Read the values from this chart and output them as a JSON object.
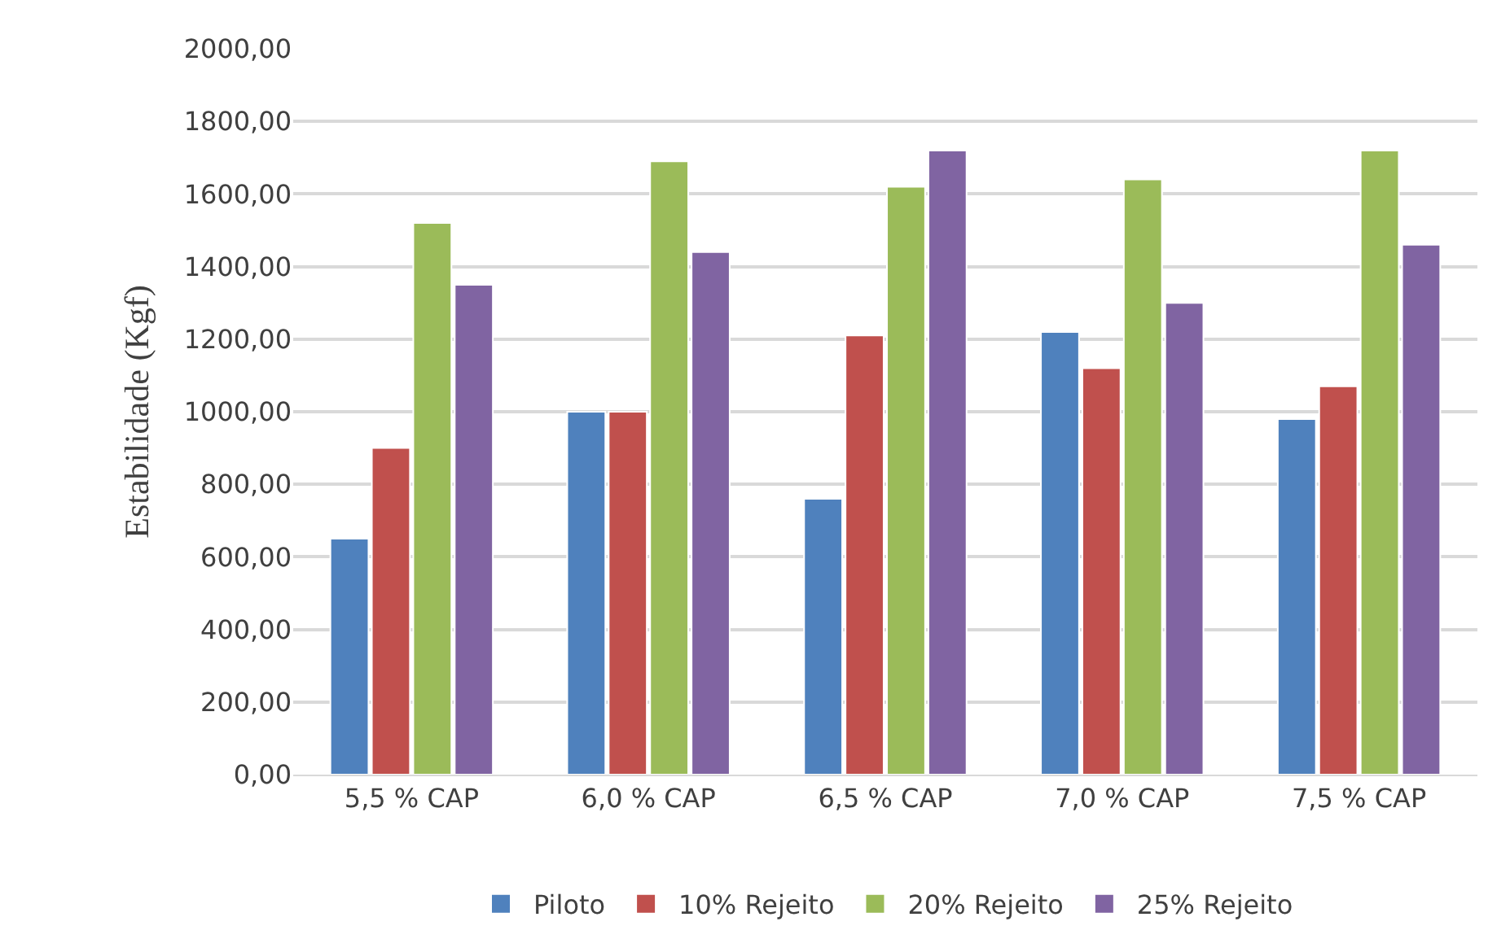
{
  "chart_data": {
    "type": "bar",
    "ylabel": "Estabilidade (Kgf)",
    "categories": [
      "5,5 % CAP",
      "6,0 % CAP",
      "6,5 % CAP",
      "7,0 % CAP",
      "7,5 % CAP"
    ],
    "series": [
      {
        "name": "Piloto",
        "color": "#4f81bd",
        "values": [
          650,
          1000,
          760,
          1220,
          980
        ]
      },
      {
        "name": "10% Rejeito",
        "color": "#c0504d",
        "values": [
          900,
          1000,
          1210,
          1120,
          1070
        ]
      },
      {
        "name": "20% Rejeito",
        "color": "#9bbb59",
        "values": [
          1520,
          1690,
          1620,
          1640,
          1720
        ]
      },
      {
        "name": "25% Rejeito",
        "color": "#8064a2",
        "values": [
          1350,
          1440,
          1720,
          1300,
          1460
        ]
      }
    ],
    "ylim": [
      0,
      2000
    ],
    "yticks": [
      {
        "value": 0,
        "label": "0,00"
      },
      {
        "value": 200,
        "label": "200,00"
      },
      {
        "value": 400,
        "label": "400,00"
      },
      {
        "value": 600,
        "label": "600,00"
      },
      {
        "value": 800,
        "label": "800,00"
      },
      {
        "value": 1000,
        "label": "1000,00"
      },
      {
        "value": 1200,
        "label": "1200,00"
      },
      {
        "value": 1400,
        "label": "1400,00"
      },
      {
        "value": 1600,
        "label": "1600,00"
      },
      {
        "value": 1800,
        "label": "1800,00"
      },
      {
        "value": 2000,
        "label": "2000,00"
      }
    ],
    "grid": "y",
    "legend": "bottom"
  }
}
